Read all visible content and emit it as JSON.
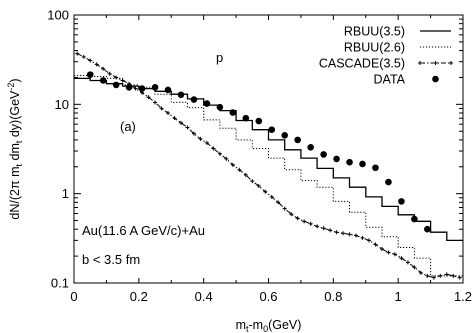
{
  "chart_data": {
    "type": "line",
    "xlabel": "m_t-m_0(GeV)",
    "ylabel": "dN/(2π m_t dm_t dy)(GeV^-2)",
    "xlim": [
      0,
      1.2
    ],
    "ylim": [
      0.1,
      100
    ],
    "y_scale": "log",
    "grid": false,
    "legend_position": "top-right",
    "x_ticks": [
      "0",
      "0.2",
      "0.4",
      "0.6",
      "0.8",
      "1",
      "1.2"
    ],
    "y_ticks": [
      "0.1",
      "1",
      "10",
      "100"
    ],
    "annotations": {
      "particle": "p",
      "panel": "(a)",
      "system": "Au(11.6 A GeV/c)+Au",
      "cut": "b < 3.5 fm"
    },
    "series": [
      {
        "name": "RBUU(3.5)",
        "style": "solid-step",
        "color": "#000000",
        "x": [
          0.0,
          0.05,
          0.1,
          0.15,
          0.2,
          0.25,
          0.3,
          0.35,
          0.4,
          0.45,
          0.5,
          0.55,
          0.6,
          0.65,
          0.7,
          0.75,
          0.8,
          0.85,
          0.9,
          0.95,
          1.0,
          1.05,
          1.1,
          1.15,
          1.2
        ],
        "y": [
          19.5,
          18.5,
          17,
          16,
          15,
          14,
          13,
          11.5,
          9.8,
          8.5,
          6.6,
          5.2,
          4.0,
          3.1,
          2.5,
          1.92,
          1.5,
          1.18,
          0.92,
          0.72,
          0.58,
          0.49,
          0.37,
          0.3,
          0.3
        ]
      },
      {
        "name": "RBUU(2.6)",
        "style": "dotted-step",
        "color": "#000000",
        "x": [
          0.0,
          0.05,
          0.1,
          0.15,
          0.2,
          0.25,
          0.3,
          0.35,
          0.4,
          0.45,
          0.5,
          0.55,
          0.6,
          0.65,
          0.7,
          0.75,
          0.8,
          0.85,
          0.9,
          0.95,
          1.0,
          1.05,
          1.1,
          1.15,
          1.2
        ],
        "y": [
          21,
          20.5,
          19.5,
          16.5,
          15.5,
          13,
          10.5,
          9.2,
          6.7,
          5.4,
          4.0,
          3.2,
          2.5,
          1.85,
          1.4,
          1.18,
          0.82,
          0.62,
          0.42,
          0.33,
          0.25,
          0.19,
          0.12,
          0.12,
          0.12
        ]
      },
      {
        "name": "CASCADE(3.5)",
        "style": "dash-dot-markers",
        "color": "#000000",
        "x": [
          0.01,
          0.03,
          0.05,
          0.07,
          0.09,
          0.11,
          0.13,
          0.15,
          0.17,
          0.19,
          0.21,
          0.23,
          0.25,
          0.27,
          0.29,
          0.31,
          0.33,
          0.35,
          0.37,
          0.39,
          0.41,
          0.43,
          0.45,
          0.47,
          0.49,
          0.51,
          0.53,
          0.55,
          0.57,
          0.59,
          0.61,
          0.63,
          0.65,
          0.67,
          0.69,
          0.71,
          0.73,
          0.75,
          0.77,
          0.79,
          0.81,
          0.83,
          0.85,
          0.87,
          0.89,
          0.91,
          0.93,
          0.95,
          0.97,
          0.99,
          1.01,
          1.03,
          1.05,
          1.07,
          1.09,
          1.11,
          1.13,
          1.15,
          1.17,
          1.19
        ],
        "y": [
          37,
          34,
          31,
          28,
          25,
          22,
          20,
          18.5,
          17,
          15,
          13.5,
          12,
          10.5,
          9,
          8.0,
          7.0,
          6.2,
          5.5,
          4.7,
          4.1,
          3.7,
          3.2,
          2.8,
          2.45,
          2.1,
          1.85,
          1.62,
          1.38,
          1.22,
          1.05,
          0.92,
          0.8,
          0.68,
          0.59,
          0.53,
          0.49,
          0.46,
          0.43,
          0.41,
          0.39,
          0.37,
          0.36,
          0.35,
          0.34,
          0.32,
          0.3,
          0.27,
          0.24,
          0.22,
          0.21,
          0.19,
          0.17,
          0.15,
          0.13,
          0.12,
          0.115,
          0.12,
          0.125,
          0.12,
          0.115
        ]
      },
      {
        "name": "DATA",
        "style": "filled-circles",
        "color": "#000000",
        "x": [
          0.05,
          0.09,
          0.13,
          0.17,
          0.21,
          0.25,
          0.29,
          0.33,
          0.37,
          0.41,
          0.45,
          0.49,
          0.53,
          0.57,
          0.61,
          0.65,
          0.69,
          0.73,
          0.77,
          0.81,
          0.85,
          0.89,
          0.93,
          0.97,
          1.01,
          1.05,
          1.09
        ],
        "y": [
          21.5,
          18.5,
          16.5,
          15.5,
          15.0,
          15.5,
          14.5,
          12.8,
          11.3,
          10.2,
          9.3,
          8.1,
          7.0,
          6.5,
          5.2,
          4.5,
          4.0,
          3.3,
          2.75,
          2.45,
          2.25,
          2.15,
          1.95,
          1.35,
          0.82,
          0.52,
          0.4
        ]
      }
    ]
  }
}
